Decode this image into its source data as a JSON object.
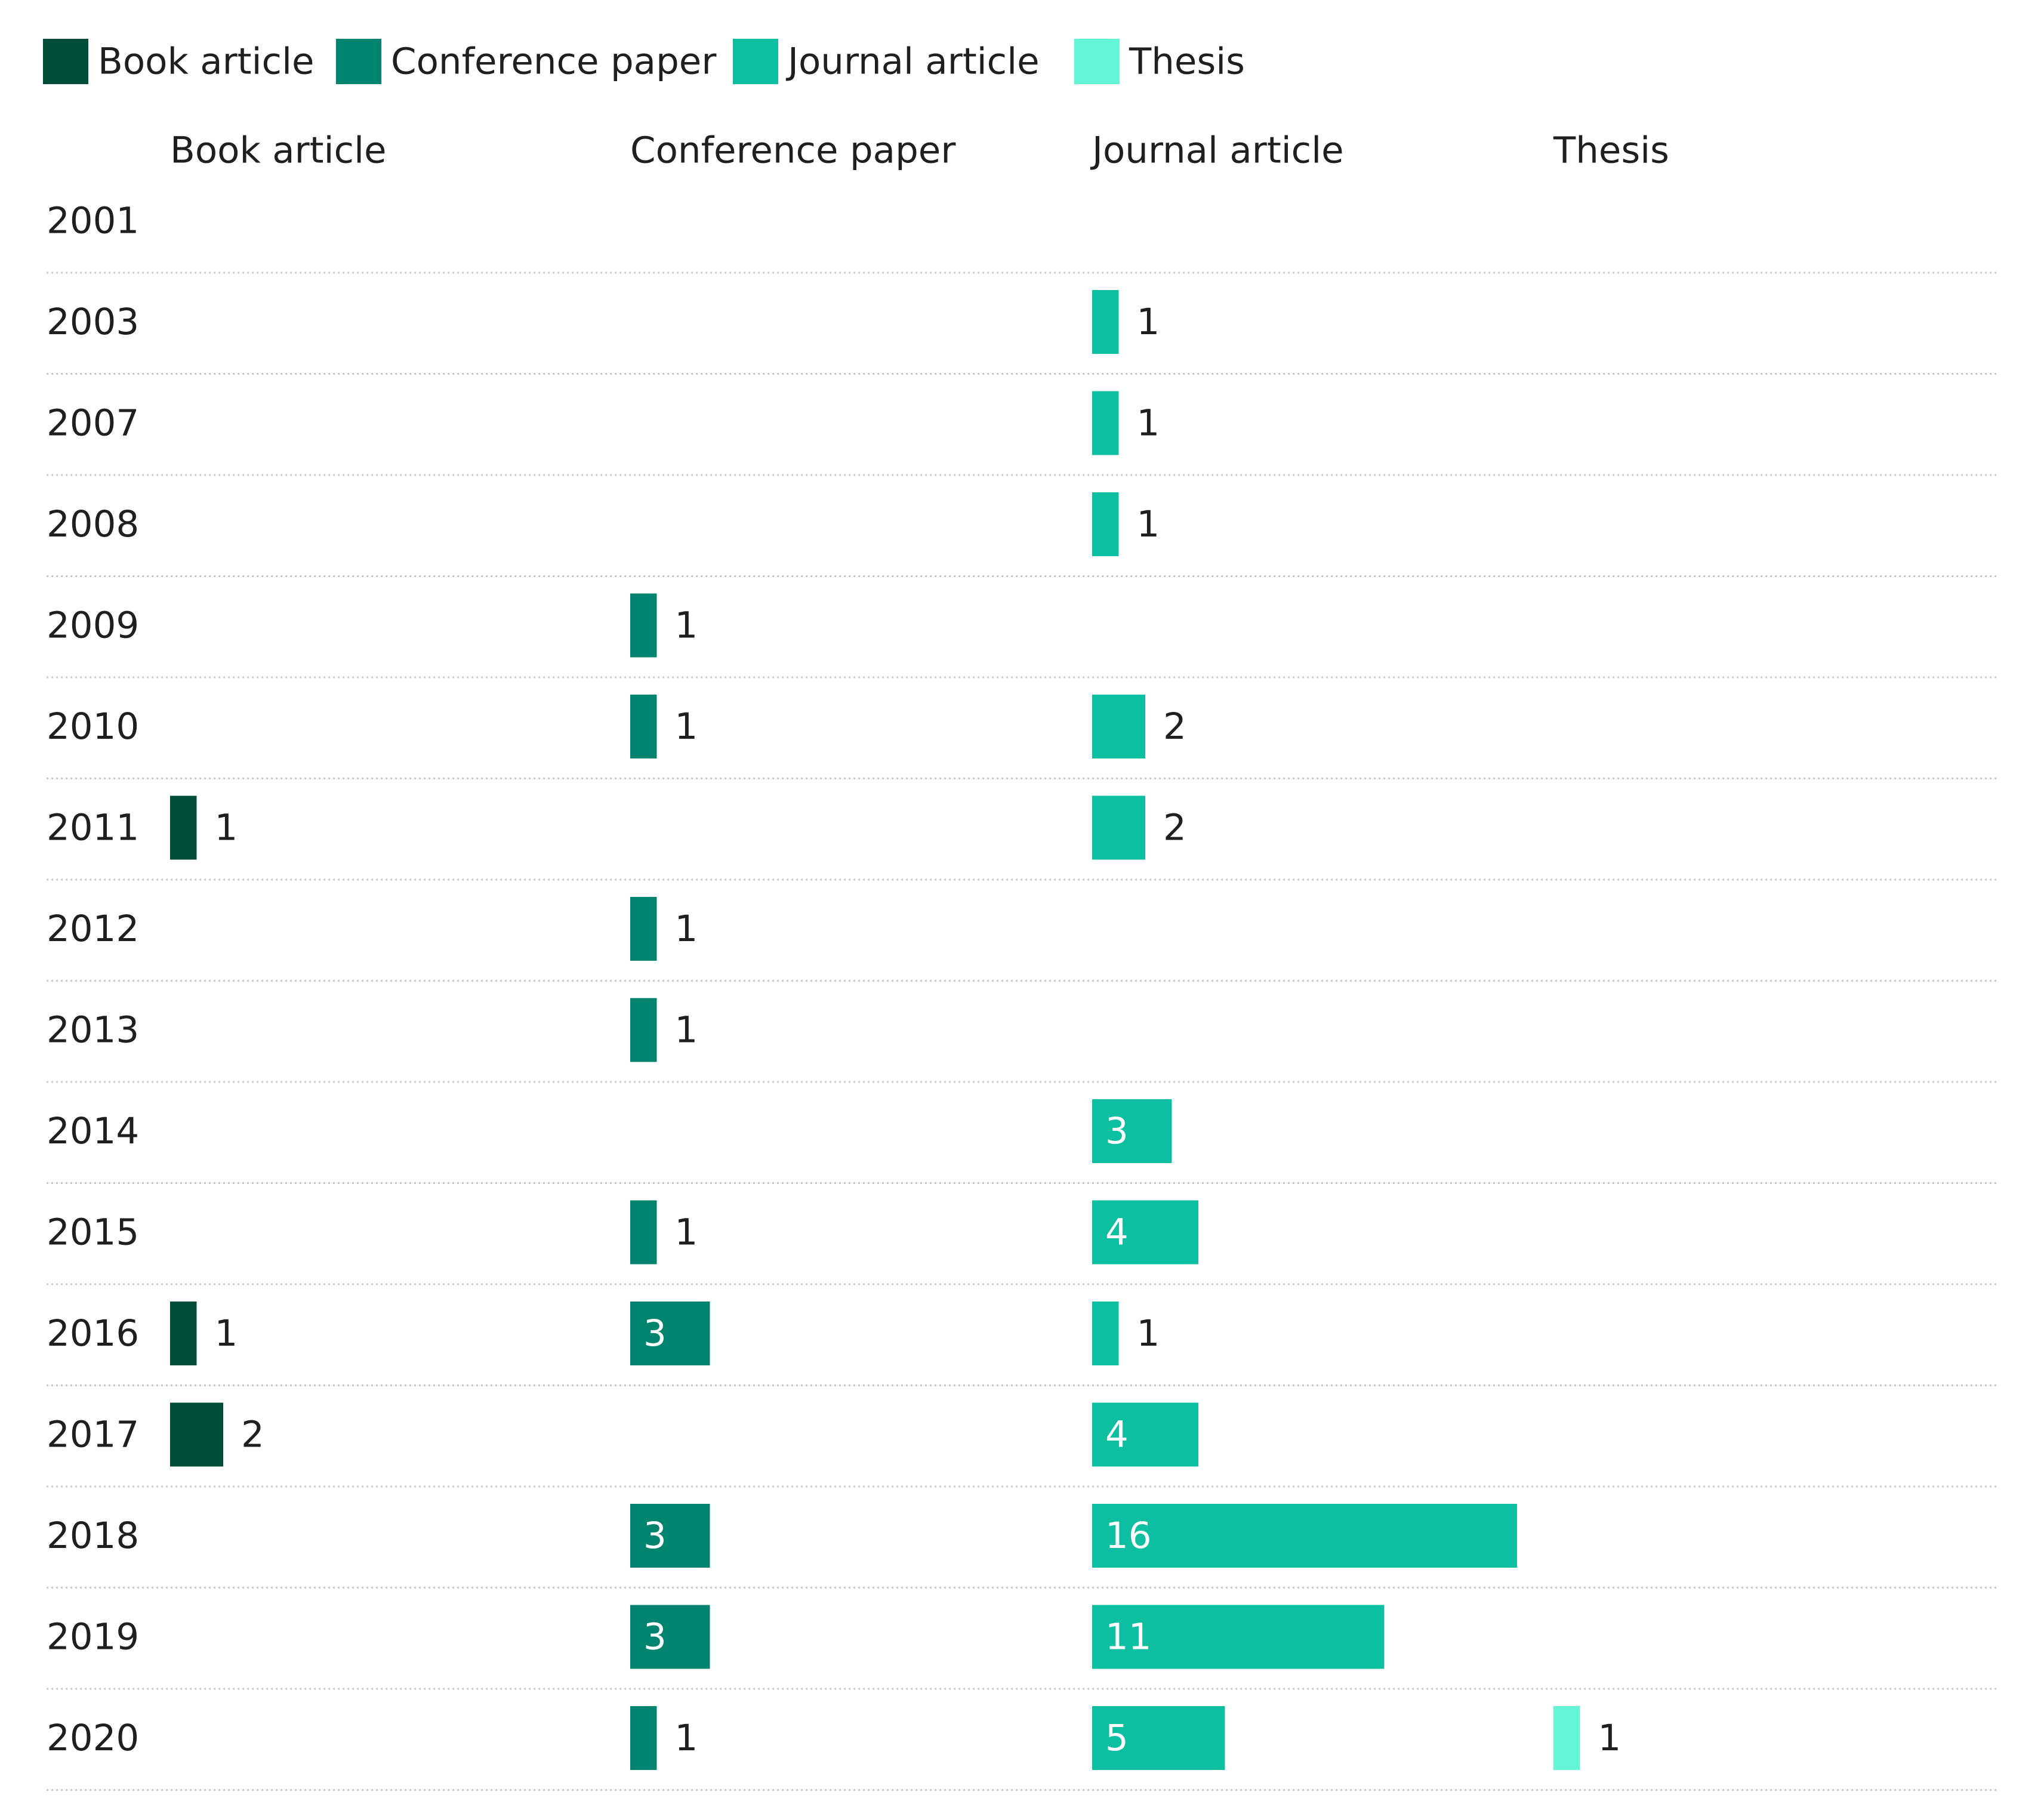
{
  "chart_data": {
    "type": "bar",
    "orientation": "horizontal",
    "layout": "small-multiples",
    "legend_position": "top-left",
    "title": "",
    "xlabel": "",
    "ylabel": "",
    "categories": [
      "2001",
      "2003",
      "2007",
      "2008",
      "2009",
      "2010",
      "2011",
      "2012",
      "2013",
      "2014",
      "2015",
      "2016",
      "2017",
      "2018",
      "2019",
      "2020"
    ],
    "series": [
      {
        "name": "Book article",
        "color": "#004d3a",
        "values": [
          null,
          null,
          null,
          null,
          null,
          null,
          1,
          null,
          null,
          null,
          null,
          1,
          2,
          null,
          null,
          null
        ]
      },
      {
        "name": "Conference paper",
        "color": "#008470",
        "values": [
          null,
          null,
          null,
          null,
          1,
          1,
          null,
          1,
          1,
          null,
          1,
          3,
          null,
          3,
          3,
          1
        ]
      },
      {
        "name": "Journal article",
        "color": "#0bbfa0",
        "values": [
          null,
          1,
          1,
          1,
          null,
          2,
          2,
          null,
          null,
          3,
          4,
          1,
          4,
          16,
          11,
          5
        ]
      },
      {
        "name": "Thesis",
        "color": "#64f5d6",
        "values": [
          null,
          null,
          null,
          null,
          null,
          null,
          null,
          null,
          null,
          null,
          null,
          null,
          null,
          null,
          null,
          1
        ]
      }
    ]
  }
}
